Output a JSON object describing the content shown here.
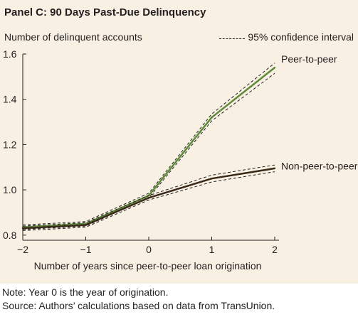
{
  "chart_data": {
    "type": "line",
    "title": "Panel C: 90 Days Past-Due Delinquency",
    "ylabel": "Number of delinquent accounts",
    "xlabel": "Number of years since peer-to-peer loan origination",
    "legend": {
      "label": "95% confidence interval",
      "placement": "top-right"
    },
    "x": [
      -2,
      -1,
      0,
      1,
      2
    ],
    "x_tick_labels": [
      "−2",
      "−1",
      "0",
      "1",
      "2"
    ],
    "y_ticks": [
      0.8,
      1.0,
      1.2,
      1.4,
      1.6
    ],
    "y_tick_labels": [
      "0.8",
      "1.0",
      "1.2",
      "1.4",
      "1.6"
    ],
    "xlim": [
      -2,
      2
    ],
    "ylim": [
      0.79,
      1.6
    ],
    "grid": false,
    "series": [
      {
        "name": "Peer-to-peer",
        "color": "#5e8a3a",
        "values": [
          0.835,
          0.85,
          0.975,
          1.32,
          1.54
        ],
        "ci_lower": [
          0.825,
          0.84,
          0.965,
          1.305,
          1.515
        ],
        "ci_upper": [
          0.845,
          0.86,
          0.985,
          1.335,
          1.56
        ]
      },
      {
        "name": "Non-peer-to-peer",
        "color": "#3a2a1a",
        "values": [
          0.83,
          0.845,
          0.965,
          1.05,
          1.095
        ],
        "ci_lower": [
          0.82,
          0.835,
          0.955,
          1.035,
          1.08
        ],
        "ci_upper": [
          0.84,
          0.855,
          0.975,
          1.065,
          1.11
        ]
      }
    ]
  },
  "notes": {
    "note": "Note: Year 0 is the year of origination.",
    "source": "Source: Authors’ calculations based on data from TransUnion."
  }
}
